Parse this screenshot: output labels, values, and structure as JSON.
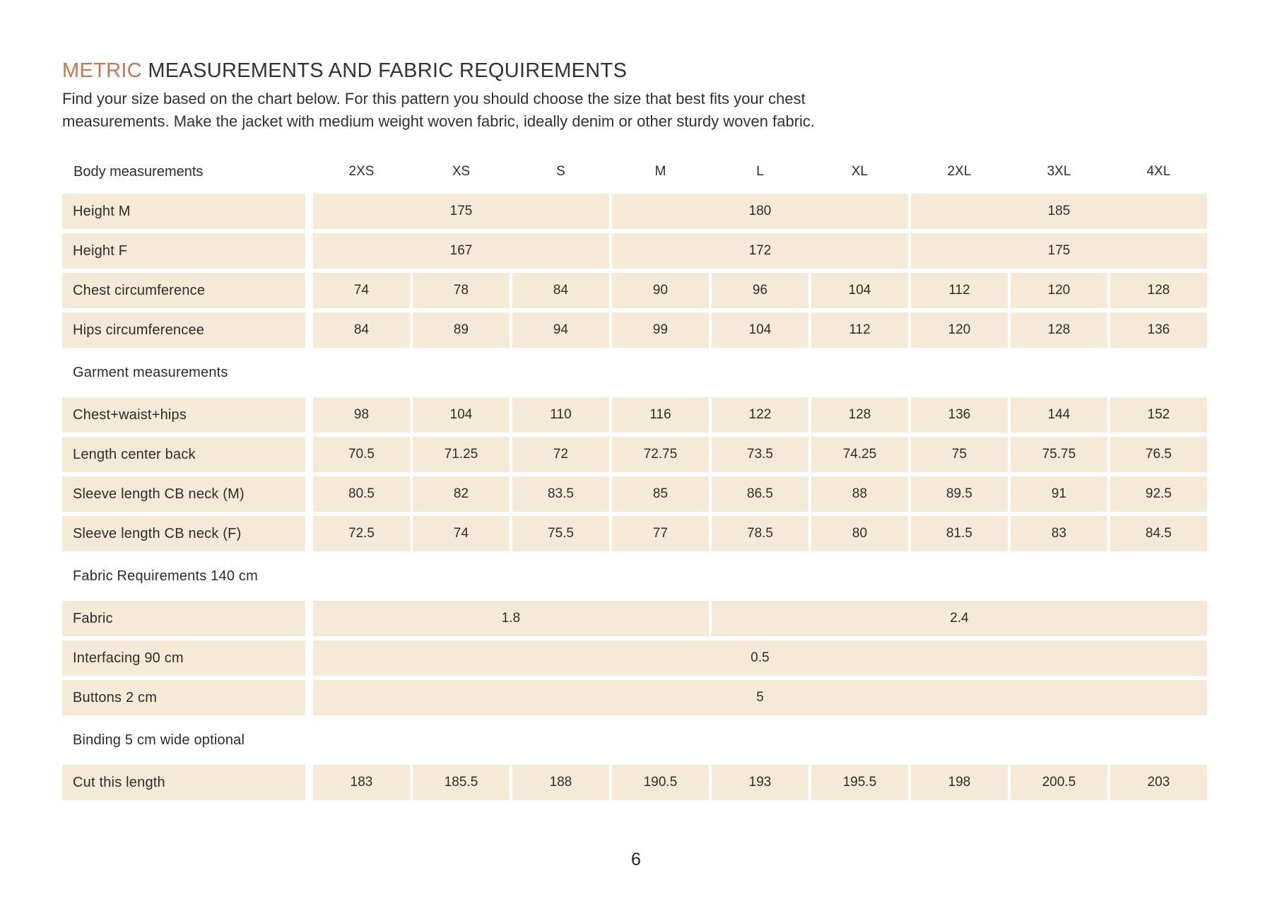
{
  "page": {
    "title": {
      "accent": "METRIC",
      "rest": " MEASUREMENTS AND FABRIC REQUIREMENTS"
    },
    "intro_lines": [
      "Find your size based on the chart below. For this pattern you should choose the size that best fits your chest",
      "measurements. Make the jacket with medium weight woven fabric, ideally denim or other sturdy woven fabric."
    ],
    "page_number": "6"
  },
  "colors": {
    "accent_orange": "#C8744E",
    "cell_beige": "#F5EAD7",
    "text_dark": "#2E2C29"
  },
  "table": {
    "header_label": "Body measurements",
    "sizes": [
      "2XS",
      "XS",
      "S",
      "M",
      "L",
      "XL",
      "2XL",
      "3XL",
      "4XL"
    ],
    "sections": [
      {
        "title": null,
        "rows": [
          {
            "label": "Height M",
            "cells": [
              {
                "span": 3,
                "value": "175"
              },
              {
                "span": 3,
                "value": "180"
              },
              {
                "span": 3,
                "value": "185"
              }
            ]
          },
          {
            "label": "Height F",
            "cells": [
              {
                "span": 3,
                "value": "167"
              },
              {
                "span": 3,
                "value": "172"
              },
              {
                "span": 3,
                "value": "175"
              }
            ]
          },
          {
            "label": "Chest circumference",
            "cells": [
              {
                "span": 1,
                "value": "74"
              },
              {
                "span": 1,
                "value": "78"
              },
              {
                "span": 1,
                "value": "84"
              },
              {
                "span": 1,
                "value": "90"
              },
              {
                "span": 1,
                "value": "96"
              },
              {
                "span": 1,
                "value": "104"
              },
              {
                "span": 1,
                "value": "112"
              },
              {
                "span": 1,
                "value": "120"
              },
              {
                "span": 1,
                "value": "128"
              }
            ]
          },
          {
            "label": "Hips circumferencee",
            "cells": [
              {
                "span": 1,
                "value": "84"
              },
              {
                "span": 1,
                "value": "89"
              },
              {
                "span": 1,
                "value": "94"
              },
              {
                "span": 1,
                "value": "99"
              },
              {
                "span": 1,
                "value": "104"
              },
              {
                "span": 1,
                "value": "112"
              },
              {
                "span": 1,
                "value": "120"
              },
              {
                "span": 1,
                "value": "128"
              },
              {
                "span": 1,
                "value": "136"
              }
            ]
          }
        ]
      },
      {
        "title": "Garment measurements",
        "rows": [
          {
            "label": "Chest+waist+hips",
            "cells": [
              {
                "span": 1,
                "value": "98"
              },
              {
                "span": 1,
                "value": "104"
              },
              {
                "span": 1,
                "value": "110"
              },
              {
                "span": 1,
                "value": "116"
              },
              {
                "span": 1,
                "value": "122"
              },
              {
                "span": 1,
                "value": "128"
              },
              {
                "span": 1,
                "value": "136"
              },
              {
                "span": 1,
                "value": "144"
              },
              {
                "span": 1,
                "value": "152"
              }
            ]
          },
          {
            "label": "Length center back",
            "cells": [
              {
                "span": 1,
                "value": "70.5"
              },
              {
                "span": 1,
                "value": "71.25"
              },
              {
                "span": 1,
                "value": "72"
              },
              {
                "span": 1,
                "value": "72.75"
              },
              {
                "span": 1,
                "value": "73.5"
              },
              {
                "span": 1,
                "value": "74.25"
              },
              {
                "span": 1,
                "value": "75"
              },
              {
                "span": 1,
                "value": "75.75"
              },
              {
                "span": 1,
                "value": "76.5"
              }
            ]
          },
          {
            "label": "Sleeve length CB neck (M)",
            "cells": [
              {
                "span": 1,
                "value": "80.5"
              },
              {
                "span": 1,
                "value": "82"
              },
              {
                "span": 1,
                "value": "83.5"
              },
              {
                "span": 1,
                "value": "85"
              },
              {
                "span": 1,
                "value": "86.5"
              },
              {
                "span": 1,
                "value": "88"
              },
              {
                "span": 1,
                "value": "89.5"
              },
              {
                "span": 1,
                "value": "91"
              },
              {
                "span": 1,
                "value": "92.5"
              }
            ]
          },
          {
            "label": "Sleeve length CB neck (F)",
            "cells": [
              {
                "span": 1,
                "value": "72.5"
              },
              {
                "span": 1,
                "value": "74"
              },
              {
                "span": 1,
                "value": "75.5"
              },
              {
                "span": 1,
                "value": "77"
              },
              {
                "span": 1,
                "value": "78.5"
              },
              {
                "span": 1,
                "value": "80"
              },
              {
                "span": 1,
                "value": "81.5"
              },
              {
                "span": 1,
                "value": "83"
              },
              {
                "span": 1,
                "value": "84.5"
              }
            ]
          }
        ]
      },
      {
        "title": "Fabric Requirements 140 cm",
        "rows": [
          {
            "label": "Fabric",
            "cells": [
              {
                "span": 4,
                "value": "1.8"
              },
              {
                "span": 5,
                "value": "2.4"
              }
            ]
          },
          {
            "label": "Interfacing 90 cm",
            "cells": [
              {
                "span": 9,
                "value": "0.5"
              }
            ]
          },
          {
            "label": "Buttons 2 cm",
            "cells": [
              {
                "span": 9,
                "value": "5"
              }
            ]
          }
        ]
      },
      {
        "title": "Binding 5 cm wide optional",
        "rows": [
          {
            "label": "Cut this length",
            "cells": [
              {
                "span": 1,
                "value": "183"
              },
              {
                "span": 1,
                "value": "185.5"
              },
              {
                "span": 1,
                "value": "188"
              },
              {
                "span": 1,
                "value": "190.5"
              },
              {
                "span": 1,
                "value": "193"
              },
              {
                "span": 1,
                "value": "195.5"
              },
              {
                "span": 1,
                "value": "198"
              },
              {
                "span": 1,
                "value": "200.5"
              },
              {
                "span": 1,
                "value": "203"
              }
            ]
          }
        ]
      }
    ]
  }
}
